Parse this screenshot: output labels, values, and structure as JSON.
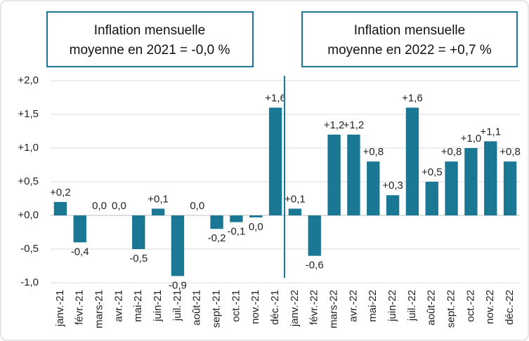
{
  "chart_data": {
    "type": "bar",
    "annotations": [
      {
        "lines": [
          "Inflation mensuelle",
          "moyenne en 2021 = -0,0 %"
        ]
      },
      {
        "lines": [
          "Inflation mensuelle",
          "moyenne en 2022 = +0,7 %"
        ]
      }
    ],
    "categories": [
      "janv.-21",
      "févr.-21",
      "mars-21",
      "avr.-21",
      "mai-21",
      "juin-21",
      "juil.-21",
      "août-21",
      "sept.-21",
      "oct.-21",
      "nov.-21",
      "déc.-21",
      "janv.-22",
      "févr.-22",
      "mars-22",
      "avr.-22",
      "mai-22",
      "juin-22",
      "juil.-22",
      "août-22",
      "sept.-22",
      "oct.-22",
      "nov.-22",
      "déc.-22"
    ],
    "values": [
      0.2,
      -0.4,
      0.0,
      0.0,
      -0.5,
      0.1,
      -0.9,
      0.0,
      -0.2,
      -0.1,
      -0.03,
      1.6,
      0.1,
      -0.6,
      1.2,
      1.2,
      0.8,
      0.3,
      1.6,
      0.5,
      0.8,
      1.0,
      1.1,
      0.8
    ],
    "value_labels": [
      "+0,2",
      "-0,4",
      "0,0",
      "0,0",
      "-0,5",
      "+0,1",
      "-0,9",
      "0,0",
      "-0,2",
      "-0,1",
      "0,0",
      "+1,6",
      "+0,1",
      "-0,6",
      "+1,2",
      "+1,2",
      "+0,8",
      "+0,3",
      "+1,6",
      "+0,5",
      "+0,8",
      "+1,0",
      "+1,1",
      "+0,8"
    ],
    "color": "#1b7895",
    "ylim": [
      -1.0,
      2.0
    ],
    "yticks": [
      {
        "value": -1.0,
        "label": "-1,0"
      },
      {
        "value": -0.5,
        "label": "-0,5"
      },
      {
        "value": 0.0,
        "label": "+0,0"
      },
      {
        "value": 0.5,
        "label": "+0,5"
      },
      {
        "value": 1.0,
        "label": "+1,0"
      },
      {
        "value": 1.5,
        "label": "+1,5"
      },
      {
        "value": 2.0,
        "label": "+2,0"
      }
    ],
    "grid": true
  }
}
